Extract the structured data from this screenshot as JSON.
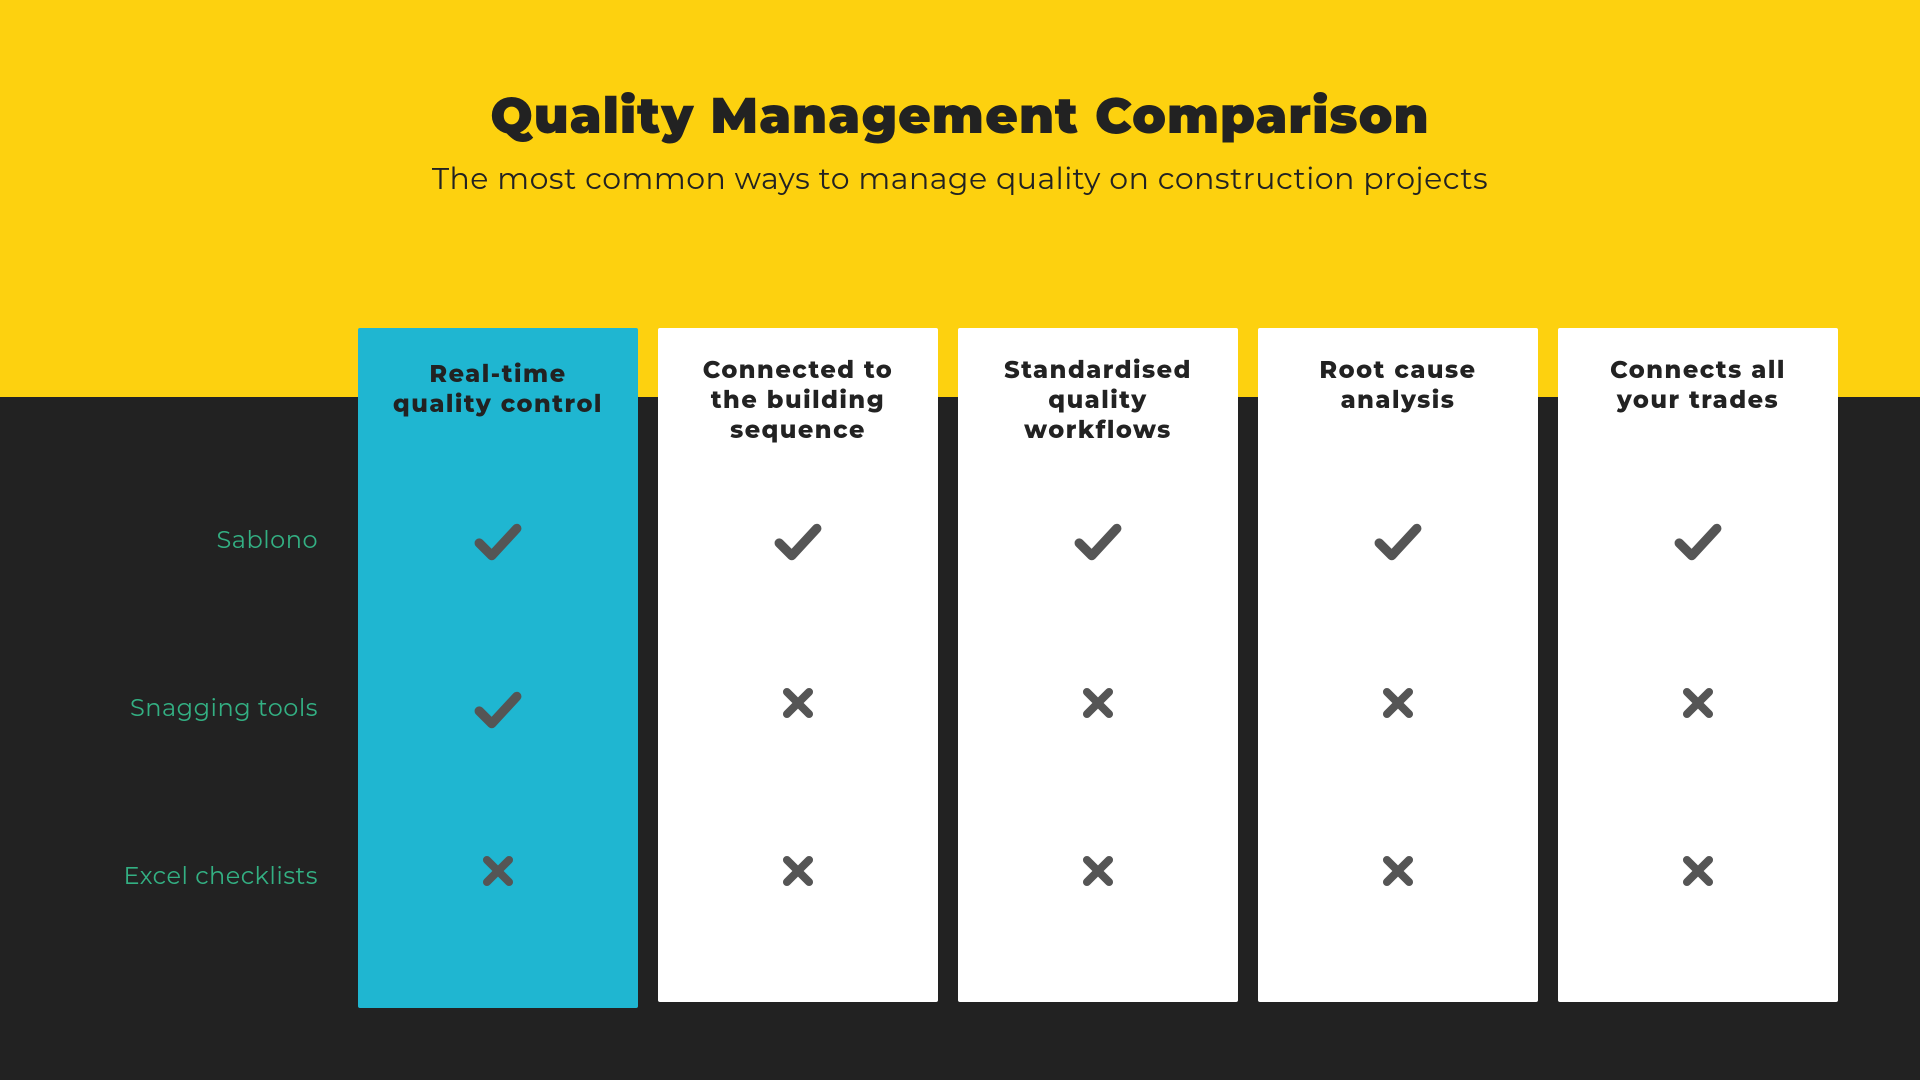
{
  "colors": {
    "top_bg": "#fdd10f",
    "bottom_bg": "#222222",
    "title": "#222222",
    "subtitle": "#222222",
    "col_bg": "#ffffff",
    "col_highlight_bg": "#1fb6d1",
    "col_header_text": "#222222",
    "row_label": "#33b083",
    "mark": "#555555"
  },
  "title": "Quality Management Comparison",
  "subtitle": "The most common ways to manage quality on construction projects",
  "columns": [
    {
      "label": "Real-time quality control",
      "highlight": true
    },
    {
      "label": "Connected to the building sequence",
      "highlight": false
    },
    {
      "label": "Standardised quality workflows",
      "highlight": false
    },
    {
      "label": "Root cause analysis",
      "highlight": false
    },
    {
      "label": "Connects all your trades",
      "highlight": false
    }
  ],
  "rows": [
    {
      "label": "Sablono",
      "cells": [
        "check",
        "check",
        "check",
        "check",
        "check"
      ]
    },
    {
      "label": "Snagging tools",
      "cells": [
        "check",
        "cross",
        "cross",
        "cross",
        "cross"
      ]
    },
    {
      "label": "Excel checklists",
      "cells": [
        "cross",
        "cross",
        "cross",
        "cross",
        "cross"
      ]
    }
  ]
}
